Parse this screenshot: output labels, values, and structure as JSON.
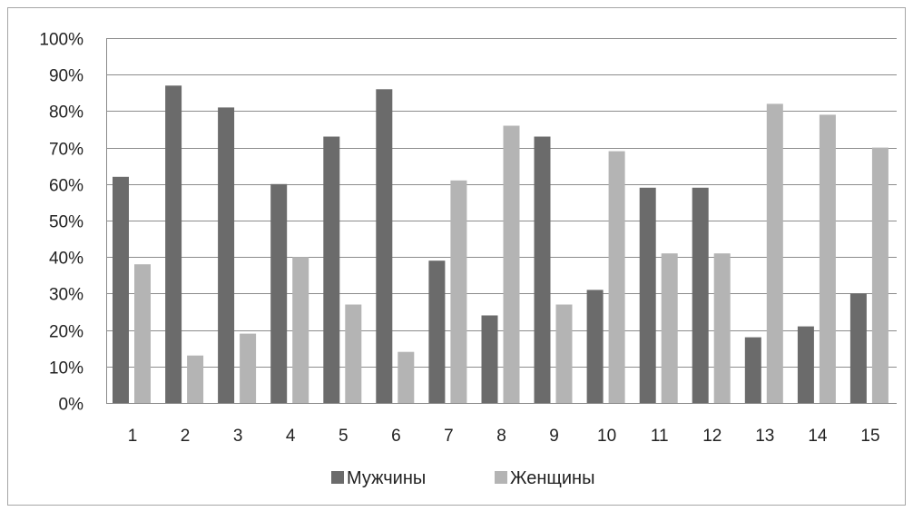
{
  "chart_data": {
    "type": "bar",
    "categories": [
      "1",
      "2",
      "3",
      "4",
      "5",
      "6",
      "7",
      "8",
      "9",
      "10",
      "11",
      "12",
      "13",
      "14",
      "15"
    ],
    "series": [
      {
        "name": "Мужчины",
        "color": "#6b6b6b",
        "values": [
          62,
          87,
          81,
          60,
          73,
          86,
          39,
          24,
          73,
          31,
          59,
          59,
          18,
          21,
          30
        ]
      },
      {
        "name": "Женщины",
        "color": "#b4b4b4",
        "values": [
          38,
          13,
          19,
          40,
          27,
          14,
          61,
          76,
          27,
          69,
          41,
          41,
          82,
          79,
          70
        ]
      }
    ],
    "y_ticks": [
      "0%",
      "10%",
      "20%",
      "30%",
      "40%",
      "50%",
      "60%",
      "70%",
      "80%",
      "90%",
      "100%"
    ],
    "ylim": [
      0,
      100
    ],
    "y_unit": "%",
    "grid": true,
    "grid_color": "#8c8c8c",
    "legend_position": "bottom",
    "title": "",
    "xlabel": "",
    "ylabel": ""
  }
}
